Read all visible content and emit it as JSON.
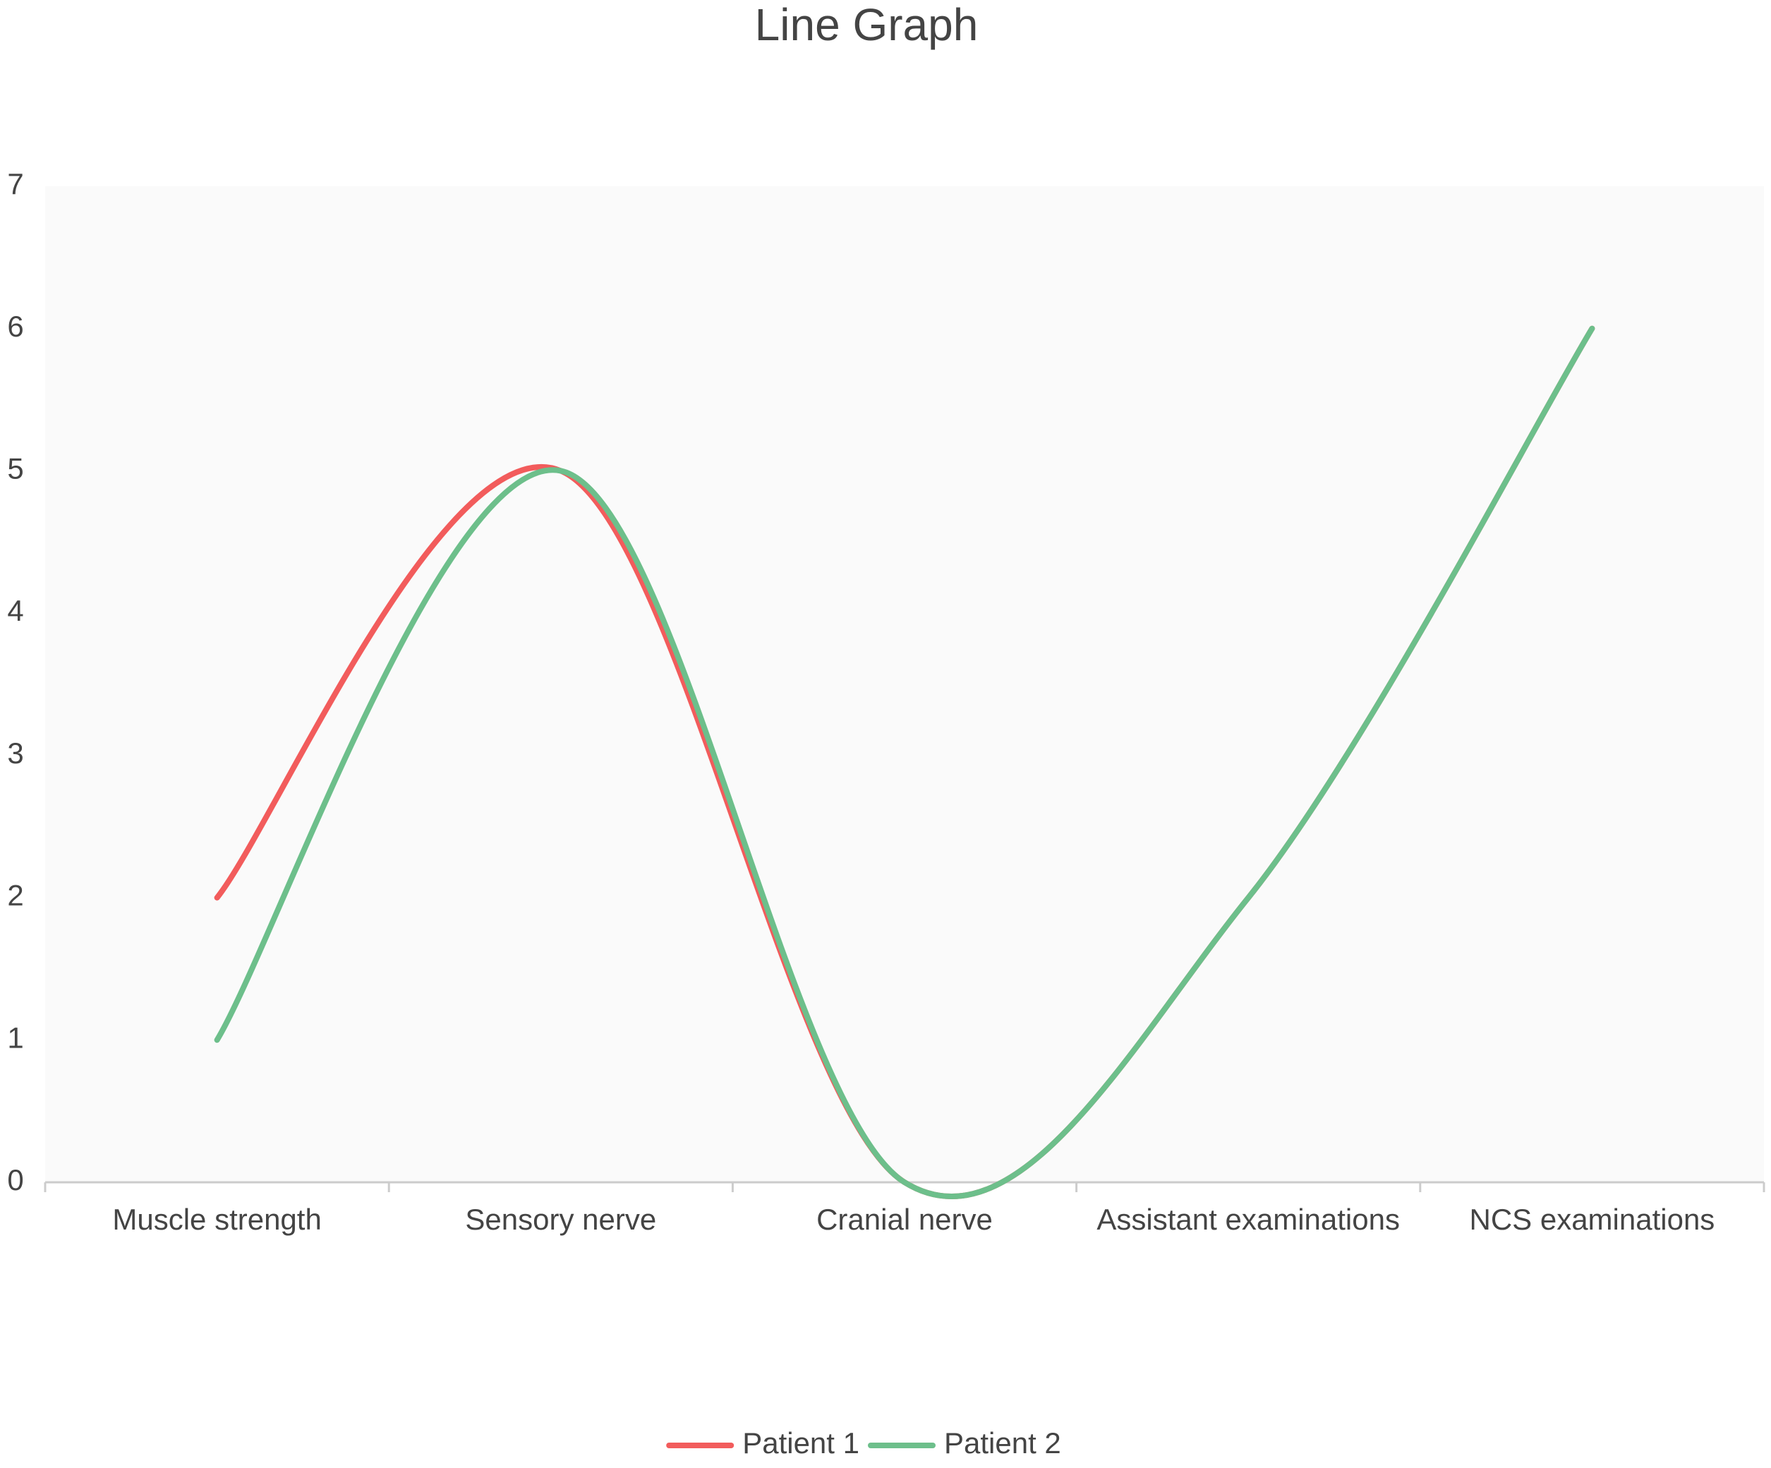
{
  "chart_data": {
    "type": "line",
    "title": "Line Graph",
    "categories": [
      "Muscle strength",
      "Sensory nerve",
      "Cranial nerve",
      "Assistant examinations",
      "NCS examinations"
    ],
    "series": [
      {
        "name": "Patient 1",
        "color": "#f25c5c",
        "values": [
          2,
          5,
          0,
          2,
          6
        ]
      },
      {
        "name": "Patient 2",
        "color": "#6dbf8b",
        "values": [
          1,
          5,
          0,
          2,
          6
        ]
      }
    ],
    "ylim": [
      0,
      7
    ],
    "yticks": [
      0,
      1,
      2,
      3,
      4,
      5,
      6,
      7
    ],
    "legend": "bottom",
    "smooth": true
  }
}
